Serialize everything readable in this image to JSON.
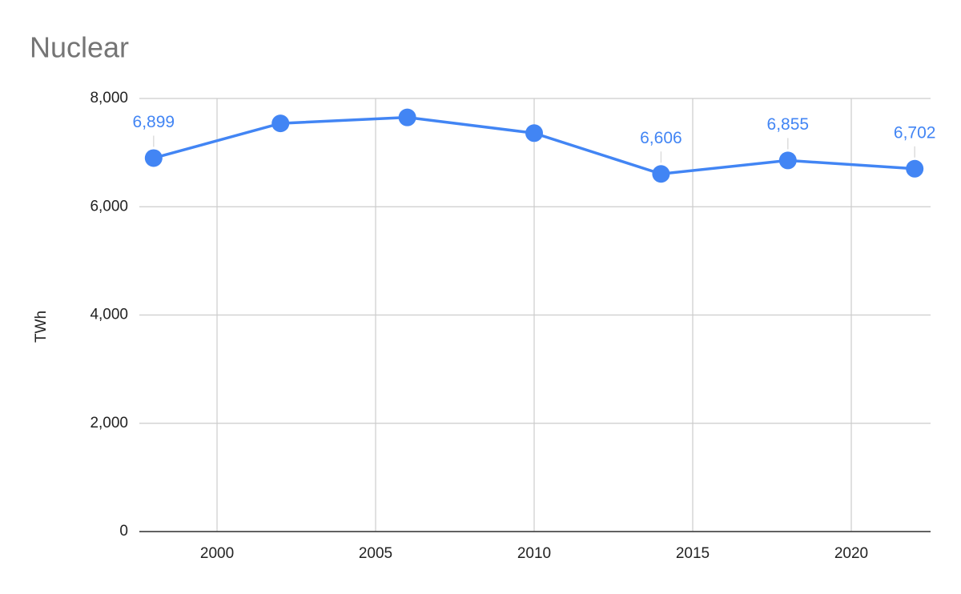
{
  "chart_data": {
    "type": "line",
    "title": "Nuclear",
    "y_label": "TWh",
    "x": [
      1998,
      2002,
      2006,
      2010,
      2014,
      2018,
      2022
    ],
    "series": [
      {
        "name": "Nuclear",
        "color": "#4285f4",
        "values": [
          6899,
          7540,
          7650,
          7360,
          6606,
          6855,
          6702
        ],
        "value_labels": [
          "6,899",
          null,
          null,
          null,
          "6,606",
          "6,855",
          "6,702"
        ]
      }
    ],
    "xlim": [
      1997.55,
      2022.5
    ],
    "xticks": [
      2000,
      2005,
      2010,
      2015,
      2020
    ],
    "ylim": [
      0,
      8000
    ],
    "yticks": [
      0,
      {
        "value": 2000,
        "label": "2,000"
      },
      {
        "value": 4000,
        "label": "4,000"
      },
      {
        "value": 6000,
        "label": "6,000"
      },
      {
        "value": 8000,
        "label": "8,000"
      }
    ],
    "grid": true
  }
}
